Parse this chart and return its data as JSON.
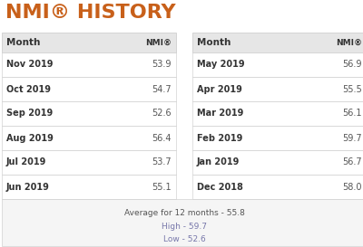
{
  "title": "NMI® HISTORY",
  "title_color": "#c8601a",
  "title_fontsize": 16,
  "left_months": [
    "Nov 2019",
    "Oct 2019",
    "Sep 2019",
    "Aug 2019",
    "Jul 2019",
    "Jun 2019"
  ],
  "left_values": [
    "53.9",
    "54.7",
    "52.6",
    "56.4",
    "53.7",
    "55.1"
  ],
  "right_months": [
    "May 2019",
    "Apr 2019",
    "Mar 2019",
    "Feb 2019",
    "Jan 2019",
    "Dec 2018"
  ],
  "right_values": [
    "56.9",
    "55.5",
    "56.1",
    "59.7",
    "56.7",
    "58.0"
  ],
  "header_label": "Month",
  "header_nmi": "NMI®",
  "avg_text": "Average for 12 months - 55.8",
  "high_text": "High - 59.7",
  "low_text": "Low - 52.6",
  "header_bg": "#e6e6e6",
  "row_bg_white": "#ffffff",
  "border_color": "#c8c8c8",
  "month_color": "#333333",
  "value_color": "#555555",
  "header_color": "#333333",
  "footer_bg": "#f5f5f5",
  "avg_color": "#555555",
  "stat_color": "#7777aa",
  "bg_color": "#ffffff"
}
